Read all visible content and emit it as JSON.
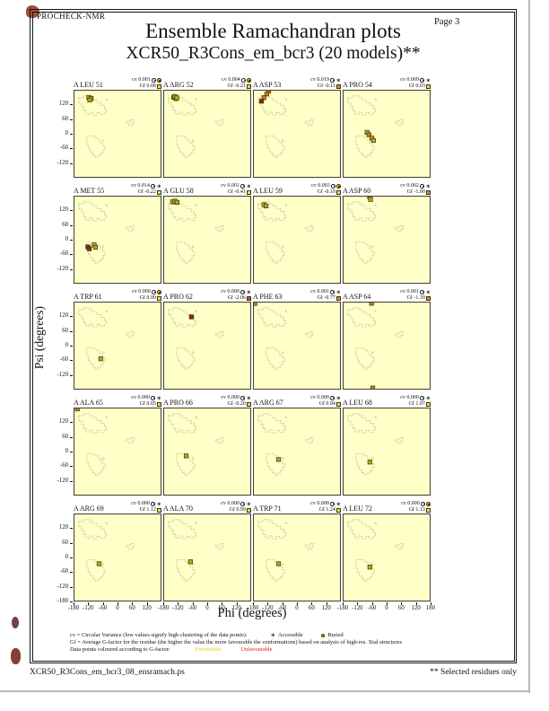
{
  "page": {
    "app_name": "PROCHECK-NMR",
    "title": "Ensemble Ramachandran plots",
    "subtitle": "XCR50_R3Cons_em_bcr3 (20 models)**",
    "page_label": "Page 3",
    "footer_left": "XCR50_R3Cons_em_bcr3_08_ensramach.ps",
    "footer_right": "** Selected residues only"
  },
  "axes": {
    "x_label": "Phi (degrees)",
    "y_label": "Psi (degrees)",
    "x_ticks": [
      -180,
      -120,
      -60,
      0,
      60,
      120
    ],
    "x_final_tick": 180,
    "y_ticks": [
      120,
      60,
      0,
      -60,
      -120
    ],
    "y_final_tick": -180
  },
  "stats_labels": {
    "cv": "cv",
    "gf": "Gf"
  },
  "legend": {
    "line1": "cv = Circular Variance (low values signify high clustering of the data points).",
    "accessible_label": "Accessible",
    "buried_label": "Buried",
    "line2": "Gf = Average G-factor for the residue (the higher the value the more favourable the conformations) based on analysis of high-res. Xtal structures",
    "line3_prefix": "Data points coloured according to G-factor:",
    "favourable_label": "Favourable",
    "unfavourable_label": "Unfavourable"
  },
  "colors": {
    "plot_bg": "#ffffc8",
    "contour": "#8c8c74",
    "pt_fav": "#b2a818",
    "pt_mid": "#c87818",
    "pt_unf": "#8c2814",
    "pt_stroke": "#3a3016",
    "gf_yellow": "#f2e410",
    "gf_orange": "#f08a00",
    "gf_red": "#e04000",
    "buried_icon": "#e8c412"
  },
  "chart_data": {
    "type": "scatter",
    "title": "Ensemble Ramachandran plots",
    "subtitle": "XCR50_R3Cons_em_bcr3 (20 models)**",
    "xlabel": "Phi (degrees)",
    "ylabel": "Psi (degrees)",
    "x_range": [
      -180,
      180
    ],
    "y_range": [
      -180,
      180
    ],
    "grid_rows": 5,
    "grid_cols": 4,
    "point_units": "degrees (phi, psi) per model, coloured by G-factor (fav=favourable, mid=less favourable, unf=unfavourable)",
    "subplots": [
      {
        "residue": "A LEU 51",
        "cv": "0.001",
        "gf": "0.08",
        "exposure": "buried",
        "gf_color": "yellow",
        "points": [
          [
            -120,
            152,
            "fav"
          ],
          [
            -110,
            148,
            "fav"
          ],
          [
            -116,
            141,
            "fav"
          ]
        ]
      },
      {
        "residue": "A ARG 52",
        "cv": "0.004",
        "gf": "-0.21",
        "exposure": "buried",
        "gf_color": "yellow",
        "points": [
          [
            -140,
            152,
            "fav"
          ],
          [
            -131,
            147,
            "fav"
          ],
          [
            -136,
            156,
            "fav"
          ],
          [
            -127,
            150,
            "fav"
          ]
        ]
      },
      {
        "residue": "A ASP 53",
        "cv": "0.019",
        "gf": "-0.11",
        "exposure": "accessible",
        "gf_color": "orange",
        "points": [
          [
            -118,
            178,
            "mid"
          ],
          [
            -126,
            166,
            "mid"
          ],
          [
            -138,
            151,
            "mid"
          ],
          [
            -148,
            136,
            "unf"
          ]
        ]
      },
      {
        "residue": "A PRO 54",
        "cv": "0.009",
        "gf": "0.03",
        "exposure": "accessible",
        "gf_color": "yellow",
        "points": [
          [
            -82,
            6,
            "fav"
          ],
          [
            -74,
            -4,
            "mid"
          ],
          [
            -62,
            -18,
            "fav"
          ],
          [
            -55,
            -28,
            "fav"
          ]
        ]
      },
      {
        "residue": "A MET 55",
        "cv": "0.014",
        "gf": "-0.22",
        "exposure": "accessible",
        "gf_color": "yellow",
        "points": [
          [
            -124,
            -30,
            "unf"
          ],
          [
            -118,
            -38,
            "unf"
          ],
          [
            -98,
            -22,
            "fav"
          ],
          [
            -92,
            -32,
            "fav"
          ]
        ]
      },
      {
        "residue": "A GLU 58",
        "cv": "0.001",
        "gf": "-0.41",
        "exposure": "accessible",
        "gf_color": "yellow",
        "points": [
          [
            -145,
            158,
            "fav"
          ],
          [
            -135,
            161,
            "fav"
          ],
          [
            -126,
            156,
            "fav"
          ]
        ]
      },
      {
        "residue": "A LEU 59",
        "cv": "0.003",
        "gf": "-0.10",
        "exposure": "buried",
        "gf_color": "yellow",
        "points": [
          [
            -138,
            146,
            "fav"
          ],
          [
            -129,
            141,
            "fav"
          ]
        ]
      },
      {
        "residue": "A ASP 60",
        "cv": "0.002",
        "gf": "-1.00",
        "exposure": "accessible",
        "gf_color": "orange",
        "points": [
          [
            -71,
            179,
            "mid"
          ],
          [
            -67,
            168,
            "fav"
          ]
        ]
      },
      {
        "residue": "A TRP 61",
        "cv": "0.000",
        "gf": "0.99",
        "exposure": "buried",
        "gf_color": "yellow",
        "points": [
          [
            -70,
            -55,
            "fav"
          ]
        ]
      },
      {
        "residue": "A PRO 62",
        "cv": "0.000",
        "gf": "-2.06",
        "exposure": "accessible",
        "gf_color": "red",
        "points": [
          [
            -66,
            120,
            "unf"
          ]
        ]
      },
      {
        "residue": "A PHE 63",
        "cv": "0.001",
        "gf": "-0.77",
        "exposure": "accessible",
        "gf_color": "orange",
        "points": [
          [
            -176,
            176,
            "mid"
          ]
        ]
      },
      {
        "residue": "A ASP 64",
        "cv": "0.001",
        "gf": "-1.39",
        "exposure": "accessible",
        "gf_color": "orange",
        "points": [
          [
            -63,
            177,
            "mid"
          ],
          [
            -58,
            -177,
            "mid"
          ]
        ]
      },
      {
        "residue": "A ALA 65",
        "cv": "0.000",
        "gf": "0.05",
        "exposure": "accessible",
        "gf_color": "yellow",
        "points": [
          [
            -168,
            178,
            "mid"
          ]
        ]
      },
      {
        "residue": "A PRO 66",
        "cv": "0.000",
        "gf": "-0.20",
        "exposure": "accessible",
        "gf_color": "yellow",
        "points": [
          [
            -88,
            -18,
            "fav"
          ]
        ]
      },
      {
        "residue": "A ARG 67",
        "cv": "0.000",
        "gf": "0.84",
        "exposure": "accessible",
        "gf_color": "yellow",
        "points": [
          [
            -77,
            -33,
            "fav"
          ]
        ]
      },
      {
        "residue": "A LEU 68",
        "cv": "0.000",
        "gf": "1.07",
        "exposure": "accessible",
        "gf_color": "yellow",
        "points": [
          [
            -70,
            -44,
            "fav"
          ]
        ]
      },
      {
        "residue": "A ARG 69",
        "cv": "0.000",
        "gf": "1.12",
        "exposure": "accessible",
        "gf_color": "yellow",
        "points": [
          [
            -77,
            -26,
            "fav"
          ]
        ]
      },
      {
        "residue": "A ALA 70",
        "cv": "0.000",
        "gf": "0.99",
        "exposure": "accessible",
        "gf_color": "yellow",
        "points": [
          [
            -70,
            -18,
            "fav"
          ]
        ]
      },
      {
        "residue": "A TRP 71",
        "cv": "0.000",
        "gf": "1.24",
        "exposure": "accessible",
        "gf_color": "yellow",
        "points": [
          [
            -77,
            -26,
            "fav"
          ]
        ]
      },
      {
        "residue": "A LEU 72",
        "cv": "0.000",
        "gf": "1.13",
        "exposure": "buried",
        "gf_color": "yellow",
        "points": [
          [
            -70,
            -40,
            "fav"
          ]
        ]
      }
    ]
  }
}
